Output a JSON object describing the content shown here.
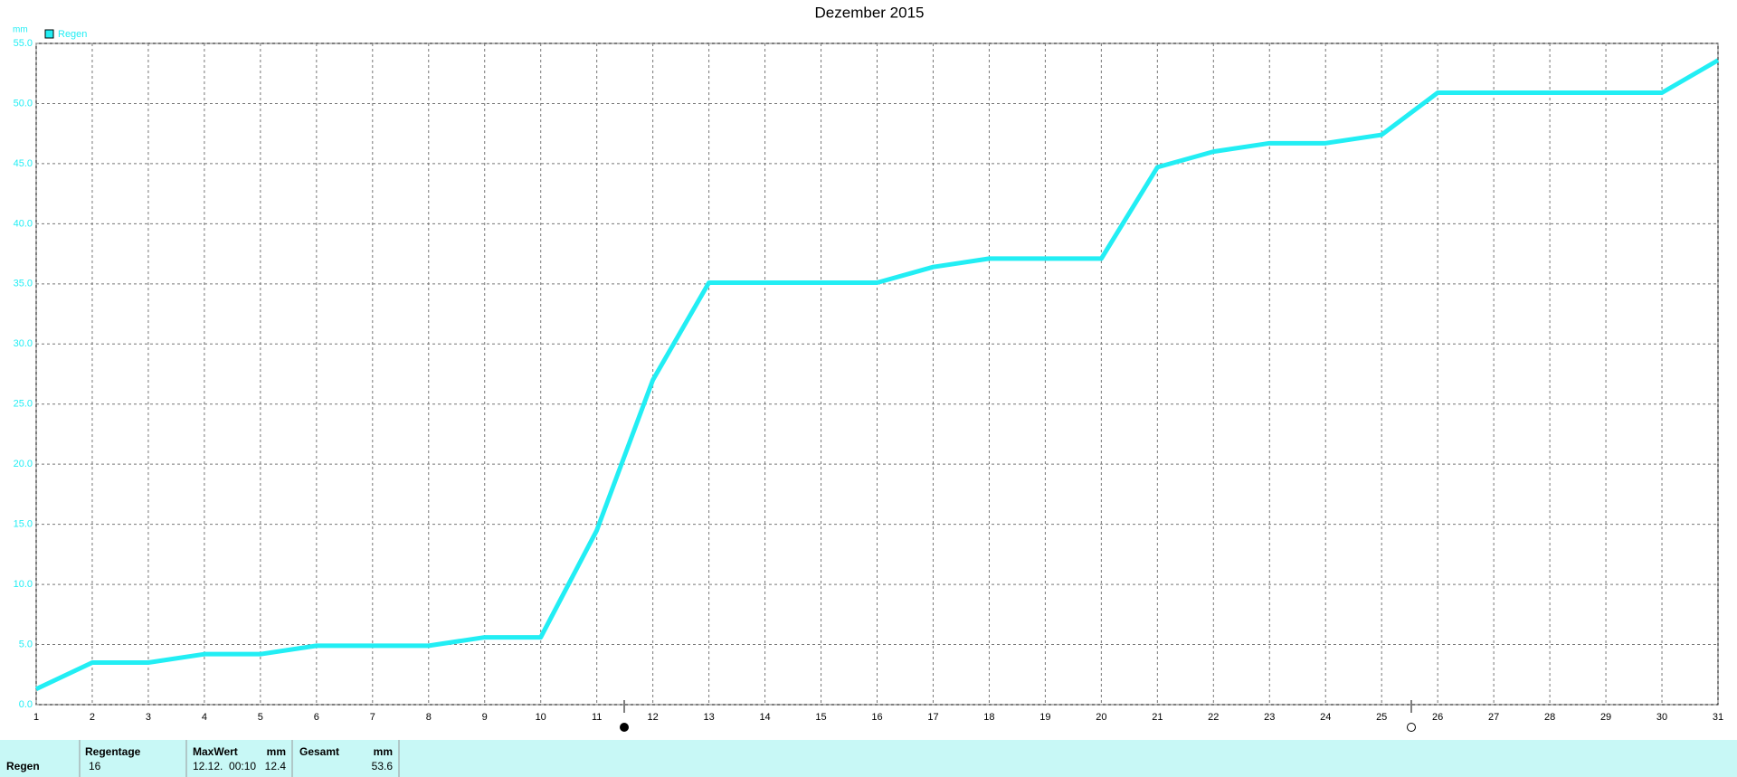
{
  "chart_data": {
    "type": "line",
    "title": "Dezember 2015",
    "y_unit": "mm",
    "x": [
      1,
      2,
      3,
      4,
      5,
      6,
      7,
      8,
      9,
      10,
      11,
      12,
      13,
      14,
      15,
      16,
      17,
      18,
      19,
      20,
      21,
      22,
      23,
      24,
      25,
      26,
      27,
      28,
      29,
      30,
      31
    ],
    "series": [
      {
        "name": "Regen",
        "color": "#22eef4",
        "values": [
          1.3,
          3.5,
          3.5,
          4.2,
          4.2,
          4.9,
          4.9,
          4.9,
          5.6,
          5.6,
          14.5,
          27.0,
          35.1,
          35.1,
          35.1,
          35.1,
          36.4,
          37.1,
          37.1,
          37.1,
          44.7,
          46.0,
          46.7,
          46.7,
          47.4,
          50.9,
          50.9,
          50.9,
          50.9,
          50.9,
          53.6
        ]
      }
    ],
    "xlim": [
      1,
      31
    ],
    "xticks": [
      1,
      2,
      3,
      4,
      5,
      6,
      7,
      8,
      9,
      10,
      11,
      12,
      13,
      14,
      15,
      16,
      17,
      18,
      19,
      20,
      21,
      22,
      23,
      24,
      25,
      26,
      27,
      28,
      29,
      30,
      31
    ],
    "ylim": [
      0,
      55
    ],
    "yticks": [
      {
        "value": 0,
        "label": "0.0"
      },
      {
        "value": 5,
        "label": "5.0"
      },
      {
        "value": 10,
        "label": "10.0"
      },
      {
        "value": 15,
        "label": "15.0"
      },
      {
        "value": 20,
        "label": "20.0"
      },
      {
        "value": 25,
        "label": "25.0"
      },
      {
        "value": 30,
        "label": "30.0"
      },
      {
        "value": 35,
        "label": "35.0"
      },
      {
        "value": 40,
        "label": "40.0"
      },
      {
        "value": 45,
        "label": "45.0"
      },
      {
        "value": 50,
        "label": "50.0"
      },
      {
        "value": 55,
        "label": "55.0"
      }
    ],
    "grid": true
  },
  "footer": {
    "row_label": "Regen",
    "columns": [
      {
        "header": "Regentage",
        "value": "16"
      },
      {
        "header": "MaxWert",
        "unit": "mm",
        "date": "12.12.  00:10",
        "value": "12.4"
      },
      {
        "header": "Gesamt",
        "unit": "mm",
        "value": "53.6"
      }
    ]
  }
}
